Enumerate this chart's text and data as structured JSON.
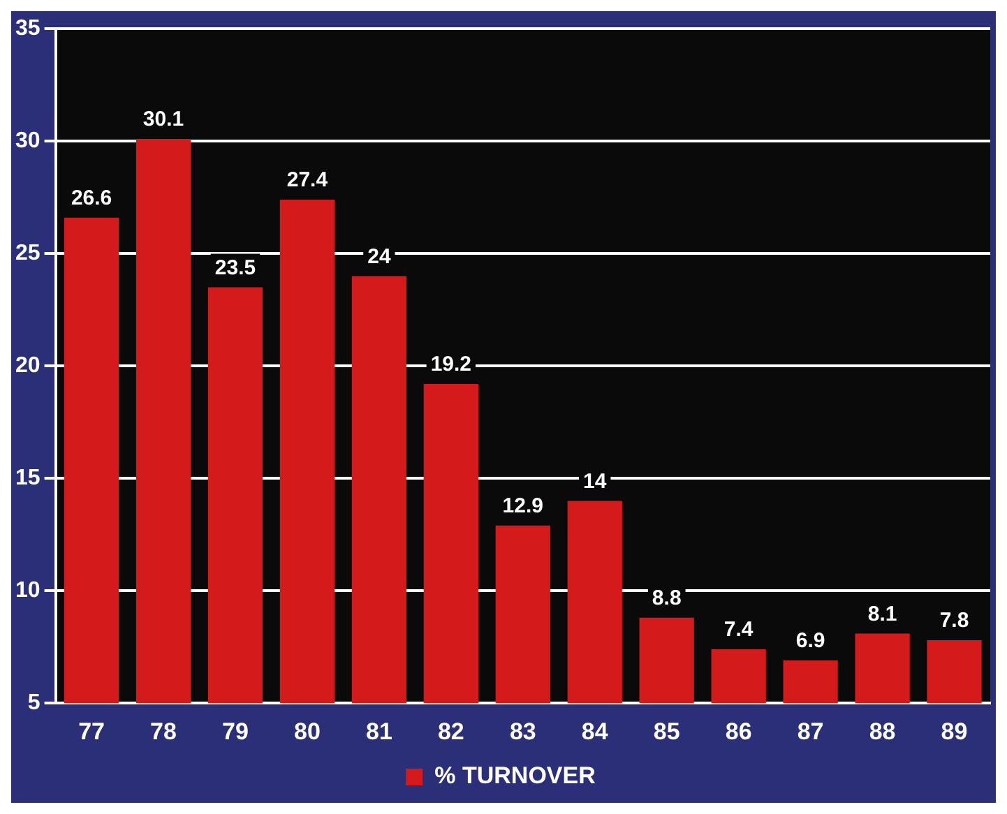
{
  "chart_data": {
    "type": "bar",
    "categories": [
      "77",
      "78",
      "79",
      "80",
      "81",
      "82",
      "83",
      "84",
      "85",
      "86",
      "87",
      "88",
      "89"
    ],
    "series": [
      {
        "name": "% TURNOVER",
        "color": "#d41a1a",
        "values": [
          26.6,
          30.1,
          23.5,
          27.4,
          24,
          19.2,
          12.9,
          14,
          8.8,
          7.4,
          6.9,
          8.1,
          7.8
        ]
      }
    ],
    "ylim": [
      5,
      35
    ],
    "yticks": [
      5,
      10,
      15,
      20,
      25,
      30,
      35
    ],
    "grid": "y",
    "legend": "bottom",
    "data_labels": true
  }
}
